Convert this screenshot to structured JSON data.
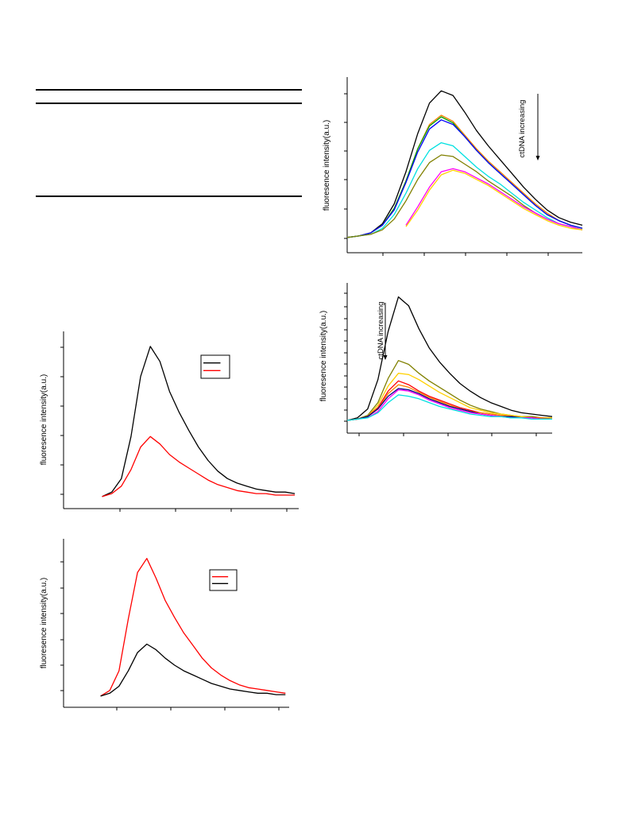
{
  "table_rules": [
    "top",
    "header",
    "bottom"
  ],
  "chart_data": [
    {
      "id": "chart-a",
      "type": "line",
      "title": "",
      "xlabel": "",
      "ylabel": "fluoresence intensity(a.u.)",
      "annotation": "ctDNA increasing",
      "annotation_direction": "down",
      "grid": false,
      "legend": "none",
      "x": [
        0,
        5,
        10,
        15,
        20,
        25,
        30,
        35,
        40,
        45,
        50,
        55,
        60,
        65,
        70,
        75,
        80,
        85,
        90,
        95,
        100
      ],
      "xlim": [
        0,
        100
      ],
      "ylim": [
        -0.1,
        1.05
      ],
      "series": [
        {
          "color": "#000000",
          "values": [
            0.0,
            0.01,
            0.03,
            0.09,
            0.22,
            0.43,
            0.68,
            0.88,
            0.96,
            0.93,
            0.82,
            0.7,
            0.6,
            0.51,
            0.42,
            0.33,
            0.25,
            0.18,
            0.13,
            0.1,
            0.08
          ]
        },
        {
          "color": "#ff8000",
          "values": [
            0.0,
            0.01,
            0.03,
            0.08,
            0.19,
            0.37,
            0.58,
            0.74,
            0.8,
            0.76,
            0.67,
            0.58,
            0.5,
            0.43,
            0.36,
            0.29,
            0.22,
            0.16,
            0.11,
            0.08,
            0.06
          ]
        },
        {
          "color": "#00a000",
          "values": [
            0.0,
            0.01,
            0.03,
            0.08,
            0.19,
            0.37,
            0.58,
            0.73,
            0.79,
            0.75,
            0.66,
            0.57,
            0.49,
            0.42,
            0.35,
            0.28,
            0.21,
            0.15,
            0.11,
            0.08,
            0.06
          ]
        },
        {
          "color": "#0000ff",
          "values": [
            0.0,
            0.01,
            0.03,
            0.08,
            0.18,
            0.36,
            0.56,
            0.71,
            0.77,
            0.74,
            0.66,
            0.57,
            0.49,
            0.42,
            0.35,
            0.28,
            0.21,
            0.15,
            0.11,
            0.08,
            0.06
          ]
        },
        {
          "color": "#00e0e0",
          "values": [
            0.0,
            0.01,
            0.02,
            0.06,
            0.15,
            0.29,
            0.45,
            0.57,
            0.62,
            0.6,
            0.53,
            0.46,
            0.4,
            0.35,
            0.29,
            0.23,
            0.18,
            0.13,
            0.09,
            0.07,
            0.05
          ]
        },
        {
          "color": "#808000",
          "values": [
            0.0,
            0.01,
            0.02,
            0.05,
            0.12,
            0.24,
            0.38,
            0.49,
            0.54,
            0.53,
            0.48,
            0.43,
            0.37,
            0.32,
            0.27,
            0.21,
            0.16,
            0.12,
            0.09,
            0.07,
            0.05
          ]
        },
        {
          "color": "#ff00ff",
          "values": [
            null,
            null,
            null,
            null,
            null,
            0.08,
            0.2,
            0.33,
            0.43,
            0.45,
            0.43,
            0.39,
            0.35,
            0.3,
            0.25,
            0.2,
            0.16,
            0.12,
            0.09,
            0.07,
            0.05
          ]
        },
        {
          "color": "#ffd000",
          "values": [
            null,
            null,
            null,
            null,
            null,
            0.07,
            0.18,
            0.31,
            0.41,
            0.44,
            0.42,
            0.38,
            0.34,
            0.29,
            0.24,
            0.19,
            0.15,
            0.11,
            0.08,
            0.06,
            0.05
          ]
        }
      ]
    },
    {
      "id": "chart-b",
      "type": "line",
      "title": "",
      "xlabel": "",
      "ylabel": "fluoresence intensity(a.u.)",
      "annotation": "ctDNA increasing",
      "annotation_direction": "down",
      "grid": false,
      "legend": "none",
      "x": [
        0,
        5,
        10,
        15,
        20,
        25,
        30,
        35,
        40,
        45,
        50,
        55,
        60,
        65,
        70,
        75,
        80,
        85,
        90,
        95,
        100
      ],
      "xlim": [
        0,
        100
      ],
      "ylim": [
        -0.1,
        1.08
      ],
      "series": [
        {
          "color": "#000000",
          "values": [
            0.0,
            0.02,
            0.09,
            0.32,
            0.7,
            0.97,
            0.9,
            0.72,
            0.57,
            0.46,
            0.37,
            0.29,
            0.23,
            0.18,
            0.14,
            0.11,
            0.08,
            0.06,
            0.05,
            0.04,
            0.03
          ]
        },
        {
          "color": "#808000",
          "values": [
            0.0,
            0.01,
            0.04,
            0.14,
            0.33,
            0.47,
            0.44,
            0.37,
            0.31,
            0.26,
            0.21,
            0.16,
            0.12,
            0.09,
            0.07,
            0.05,
            0.04,
            0.03,
            0.03,
            0.02,
            0.02
          ]
        },
        {
          "color": "#ffd000",
          "values": [
            0.0,
            0.01,
            0.03,
            0.12,
            0.27,
            0.37,
            0.36,
            0.32,
            0.27,
            0.22,
            0.18,
            0.14,
            0.1,
            0.08,
            0.06,
            0.05,
            0.04,
            0.03,
            0.02,
            0.02,
            0.02
          ]
        },
        {
          "color": "#ff0000",
          "values": [
            0.0,
            0.01,
            0.03,
            0.1,
            0.23,
            0.31,
            0.28,
            0.23,
            0.19,
            0.16,
            0.13,
            0.1,
            0.08,
            0.06,
            0.05,
            0.04,
            0.03,
            0.02,
            0.02,
            0.02,
            0.01
          ]
        },
        {
          "color": "#ff8000",
          "values": [
            0.0,
            0.01,
            0.03,
            0.09,
            0.21,
            0.28,
            0.26,
            0.22,
            0.18,
            0.15,
            0.12,
            0.09,
            0.07,
            0.06,
            0.05,
            0.04,
            0.03,
            0.02,
            0.02,
            0.02,
            0.01
          ]
        },
        {
          "color": "#000080",
          "values": [
            0.0,
            0.01,
            0.03,
            0.09,
            0.19,
            0.25,
            0.24,
            0.21,
            0.17,
            0.14,
            0.11,
            0.09,
            0.07,
            0.05,
            0.04,
            0.03,
            0.03,
            0.02,
            0.02,
            0.01,
            0.01
          ]
        },
        {
          "color": "#ff00ff",
          "values": [
            null,
            null,
            0.02,
            0.07,
            0.17,
            0.24,
            0.23,
            0.2,
            0.16,
            0.13,
            0.1,
            0.08,
            0.06,
            0.05,
            0.04,
            0.03,
            0.02,
            0.02,
            0.02,
            0.01,
            0.01
          ]
        },
        {
          "color": "#00e0e0",
          "values": [
            0.0,
            0.01,
            0.02,
            0.06,
            0.14,
            0.2,
            0.19,
            0.17,
            0.14,
            0.11,
            0.09,
            0.07,
            0.05,
            0.04,
            0.03,
            0.03,
            0.02,
            0.02,
            0.01,
            0.01,
            0.01
          ]
        }
      ]
    },
    {
      "id": "chart-c",
      "type": "line",
      "title": "",
      "xlabel": "",
      "ylabel": "fluoresence intensity(a.u.)",
      "grid": false,
      "legend": "top-right",
      "x": [
        0,
        5,
        10,
        15,
        20,
        25,
        30,
        35,
        40,
        45,
        50,
        55,
        60,
        65,
        70,
        75,
        80,
        85,
        90,
        95,
        100
      ],
      "xlim": [
        -20,
        102
      ],
      "ylim": [
        -0.08,
        1.1
      ],
      "series": [
        {
          "color": "#000000",
          "values": [
            0.0,
            0.03,
            0.12,
            0.4,
            0.8,
            1.0,
            0.9,
            0.7,
            0.56,
            0.44,
            0.33,
            0.24,
            0.17,
            0.12,
            0.09,
            0.07,
            0.05,
            0.04,
            0.03,
            0.03,
            0.02
          ]
        },
        {
          "color": "#ff0000",
          "values": [
            0.0,
            0.02,
            0.07,
            0.18,
            0.33,
            0.4,
            0.35,
            0.28,
            0.23,
            0.19,
            0.15,
            0.11,
            0.08,
            0.06,
            0.04,
            0.03,
            0.02,
            0.02,
            0.01,
            0.01,
            0.01
          ]
        }
      ]
    },
    {
      "id": "chart-d",
      "type": "line",
      "title": "",
      "xlabel": "",
      "ylabel": "fluoresence intensity(a.u.)",
      "grid": false,
      "legend": "top-right",
      "x": [
        0,
        5,
        10,
        15,
        20,
        25,
        30,
        35,
        40,
        45,
        50,
        55,
        60,
        65,
        70,
        75,
        80,
        85,
        90,
        95,
        100
      ],
      "xlim": [
        -20,
        102
      ],
      "ylim": [
        -0.08,
        1.12
      ],
      "series": [
        {
          "color": "#ff0000",
          "values": [
            0.0,
            0.04,
            0.18,
            0.55,
            0.88,
            0.98,
            0.84,
            0.68,
            0.56,
            0.45,
            0.36,
            0.27,
            0.2,
            0.15,
            0.11,
            0.08,
            0.06,
            0.05,
            0.04,
            0.03,
            0.02
          ]
        },
        {
          "color": "#000000",
          "values": [
            0.0,
            0.02,
            0.07,
            0.18,
            0.31,
            0.37,
            0.33,
            0.27,
            0.22,
            0.18,
            0.15,
            0.12,
            0.09,
            0.07,
            0.05,
            0.04,
            0.03,
            0.02,
            0.02,
            0.01,
            0.01
          ]
        }
      ]
    }
  ]
}
